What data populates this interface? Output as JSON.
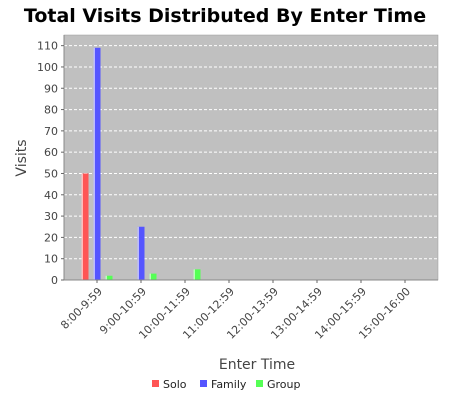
{
  "chart_data": {
    "type": "bar",
    "title": "Total Visits Distributed By Enter Time",
    "xlabel": "Enter Time",
    "ylabel": "Visits",
    "categories": [
      "8:00-9:59",
      "9:00-10:59",
      "10:00-11:59",
      "11:00-12:59",
      "12:00-13:59",
      "13:00-14:59",
      "14:00-15:59",
      "15:00-16:00"
    ],
    "series": [
      {
        "name": "Solo",
        "color": "#ff5555",
        "values": [
          50,
          0,
          0,
          0,
          0,
          0,
          0,
          0
        ]
      },
      {
        "name": "Family",
        "color": "#5555ff",
        "values": [
          109,
          25,
          0,
          0,
          0,
          0,
          0,
          0
        ]
      },
      {
        "name": "Group",
        "color": "#55ff55",
        "values": [
          2,
          3,
          5,
          0,
          0,
          0,
          0,
          0
        ]
      }
    ],
    "ylim": [
      0,
      115
    ],
    "yticks": [
      0,
      10,
      20,
      30,
      40,
      50,
      60,
      70,
      80,
      90,
      100,
      110
    ],
    "grid": true,
    "legend": "bottom",
    "plot_background": "#c0c0c0"
  }
}
